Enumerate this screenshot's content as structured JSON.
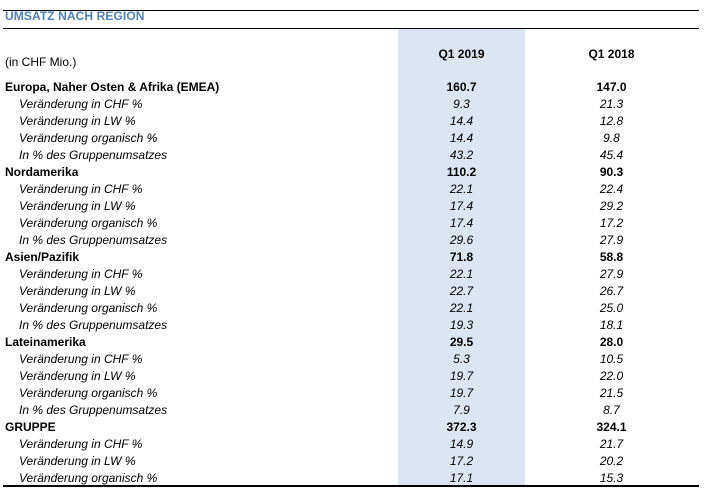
{
  "title": "UMSATZ NACH REGION",
  "unit_label": "(in CHF Mio.)",
  "columns": [
    "Q1 2019",
    "Q1 2018"
  ],
  "rows": [
    {
      "type": "main",
      "label": "Europa, Naher Osten & Afrika (EMEA)",
      "q1_2019": "160.7",
      "q1_2018": "147.0"
    },
    {
      "type": "sub",
      "label": "Veränderung in CHF %",
      "q1_2019": "9.3",
      "q1_2018": "21.3"
    },
    {
      "type": "sub",
      "label": "Veränderung in LW %",
      "q1_2019": "14.4",
      "q1_2018": "12.8"
    },
    {
      "type": "sub",
      "label": "Veränderung organisch %",
      "q1_2019": "14.4",
      "q1_2018": "9.8"
    },
    {
      "type": "sub",
      "label": "In % des Gruppenumsatzes",
      "q1_2019": "43.2",
      "q1_2018": "45.4"
    },
    {
      "type": "main",
      "label": "Nordamerika",
      "q1_2019": "110.2",
      "q1_2018": "90.3"
    },
    {
      "type": "sub",
      "label": "Veränderung in CHF %",
      "q1_2019": "22.1",
      "q1_2018": "22.4"
    },
    {
      "type": "sub",
      "label": "Veränderung in LW %",
      "q1_2019": "17.4",
      "q1_2018": "29.2"
    },
    {
      "type": "sub",
      "label": "Veränderung organisch %",
      "q1_2019": "17.4",
      "q1_2018": "17.2"
    },
    {
      "type": "sub",
      "label": "In % des Gruppenumsatzes",
      "q1_2019": "29.6",
      "q1_2018": "27.9"
    },
    {
      "type": "main",
      "label": "Asien/Pazifik",
      "q1_2019": "71.8",
      "q1_2018": "58.8"
    },
    {
      "type": "sub",
      "label": "Veränderung in CHF %",
      "q1_2019": "22.1",
      "q1_2018": "27.9"
    },
    {
      "type": "sub",
      "label": "Veränderung in LW %",
      "q1_2019": "22.7",
      "q1_2018": "26.7"
    },
    {
      "type": "sub",
      "label": "Veränderung organisch %",
      "q1_2019": "22.1",
      "q1_2018": "25.0"
    },
    {
      "type": "sub",
      "label": "In % des Gruppenumsatzes",
      "q1_2019": "19.3",
      "q1_2018": "18.1"
    },
    {
      "type": "main",
      "label": "Lateinamerika",
      "q1_2019": "29.5",
      "q1_2018": "28.0"
    },
    {
      "type": "sub",
      "label": "Veränderung in CHF %",
      "q1_2019": "5.3",
      "q1_2018": "10.5"
    },
    {
      "type": "sub",
      "label": "Veränderung in LW %",
      "q1_2019": "19.7",
      "q1_2018": "22.0"
    },
    {
      "type": "sub",
      "label": "Veränderung organisch %",
      "q1_2019": "19.7",
      "q1_2018": "21.5"
    },
    {
      "type": "sub",
      "label": "In % des Gruppenumsatzes",
      "q1_2019": "7.9",
      "q1_2018": "8.7"
    },
    {
      "type": "main",
      "label": "GRUPPE",
      "q1_2019": "372.3",
      "q1_2018": "324.1"
    },
    {
      "type": "sub",
      "label": "Veränderung in CHF %",
      "q1_2019": "14.9",
      "q1_2018": "21.7"
    },
    {
      "type": "sub",
      "label": "Veränderung in LW %",
      "q1_2019": "17.2",
      "q1_2018": "20.2"
    },
    {
      "type": "sub",
      "label": "Veränderung organisch %",
      "q1_2019": "17.1",
      "q1_2018": "15.3"
    }
  ]
}
